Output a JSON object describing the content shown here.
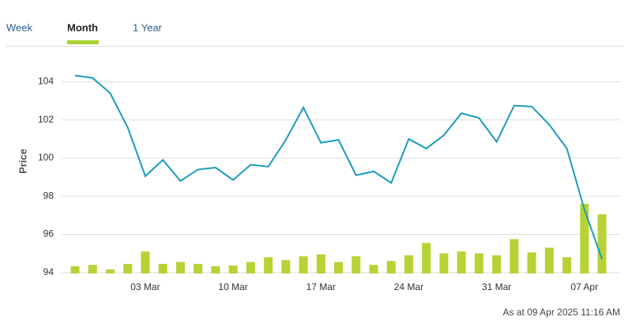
{
  "tabs": [
    "Week",
    "Month",
    "1 Year"
  ],
  "active_tab": 1,
  "footer": "As at 09 Apr 2025 11:16 AM",
  "chart_data": {
    "type": "line",
    "ylabel": "Price",
    "categories": [
      null,
      null,
      null,
      null,
      "03 Mar",
      null,
      null,
      null,
      null,
      "10 Mar",
      null,
      null,
      null,
      null,
      "17 Mar",
      null,
      null,
      null,
      null,
      "24 Mar",
      null,
      null,
      null,
      null,
      "31 Mar",
      null,
      null,
      null,
      null,
      "07 Apr",
      null
    ],
    "series": [
      {
        "type": "line",
        "color": "#1a9bbd",
        "values": [
          104.33,
          104.2,
          103.4,
          101.6,
          99.05,
          99.9,
          98.8,
          99.4,
          99.5,
          98.85,
          99.65,
          99.55,
          100.95,
          102.65,
          100.8,
          100.95,
          99.1,
          99.3,
          98.7,
          101.0,
          100.5,
          101.2,
          102.35,
          102.1,
          100.85,
          102.75,
          102.7,
          101.75,
          100.5,
          97.3,
          94.7
        ]
      },
      {
        "type": "bar",
        "color": "#b5d334",
        "values": [
          94.33,
          94.4,
          94.16,
          94.45,
          95.1,
          94.45,
          94.55,
          94.45,
          94.33,
          94.37,
          94.55,
          94.8,
          94.65,
          94.85,
          94.95,
          94.55,
          94.85,
          94.4,
          94.6,
          94.9,
          95.55,
          95.0,
          95.1,
          95.0,
          94.9,
          95.75,
          95.05,
          95.3,
          94.8,
          97.6,
          97.05
        ]
      }
    ],
    "ylim": [
      93.7,
      105.8
    ],
    "yticks": [
      94,
      96,
      98,
      100,
      102,
      104
    ],
    "grid": true
  }
}
